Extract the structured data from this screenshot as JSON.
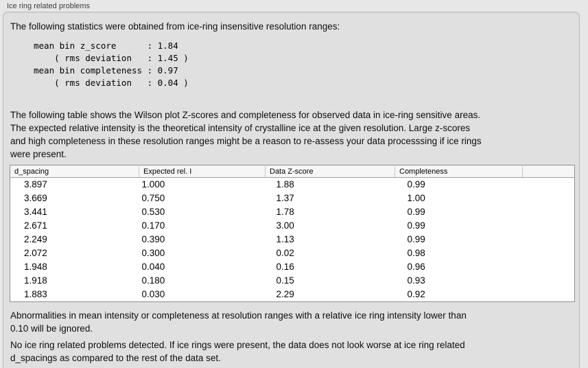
{
  "group_box": {
    "title": "Ice ring related problems"
  },
  "intro": "The following statistics were obtained from ice-ring insensitive resolution ranges:",
  "stats_block": "mean bin z_score      : 1.84\n    ( rms deviation   : 1.45 )\nmean bin completeness : 0.97\n    ( rms deviation   : 0.04 )",
  "table_description": "The following table shows the Wilson plot Z-scores and completeness for observed data in ice-ring sensitive areas.\nThe expected relative intensity is the theoretical intensity of crystalline ice at the given resolution. Large z-scores\nand high completeness in these resolution ranges might be a reason to re-assess your data processsing if ice rings\nwere present.",
  "table": {
    "columns": [
      "d_spacing",
      "Expected rel. I",
      "Data Z-score",
      "Completeness",
      ""
    ],
    "rows": [
      [
        "3.897",
        "1.000",
        "1.88",
        "0.99"
      ],
      [
        "3.669",
        "0.750",
        "1.37",
        "1.00"
      ],
      [
        "3.441",
        "0.530",
        "1.78",
        "0.99"
      ],
      [
        "2.671",
        "0.170",
        "3.00",
        "0.99"
      ],
      [
        "2.249",
        "0.390",
        "1.13",
        "0.99"
      ],
      [
        "2.072",
        "0.300",
        "0.02",
        "0.98"
      ],
      [
        "1.948",
        "0.040",
        "0.16",
        "0.96"
      ],
      [
        "1.918",
        "0.180",
        "0.15",
        "0.93"
      ],
      [
        "1.883",
        "0.030",
        "2.29",
        "0.92"
      ]
    ]
  },
  "note": "Abnormalities in mean intensity or completeness at resolution ranges with a relative ice ring intensity lower than\n0.10 will be ignored.",
  "conclusion": "No ice ring related problems detected. If ice rings were present, the data does not look worse at ice ring related\nd_spacings as compared to the rest of the data set."
}
